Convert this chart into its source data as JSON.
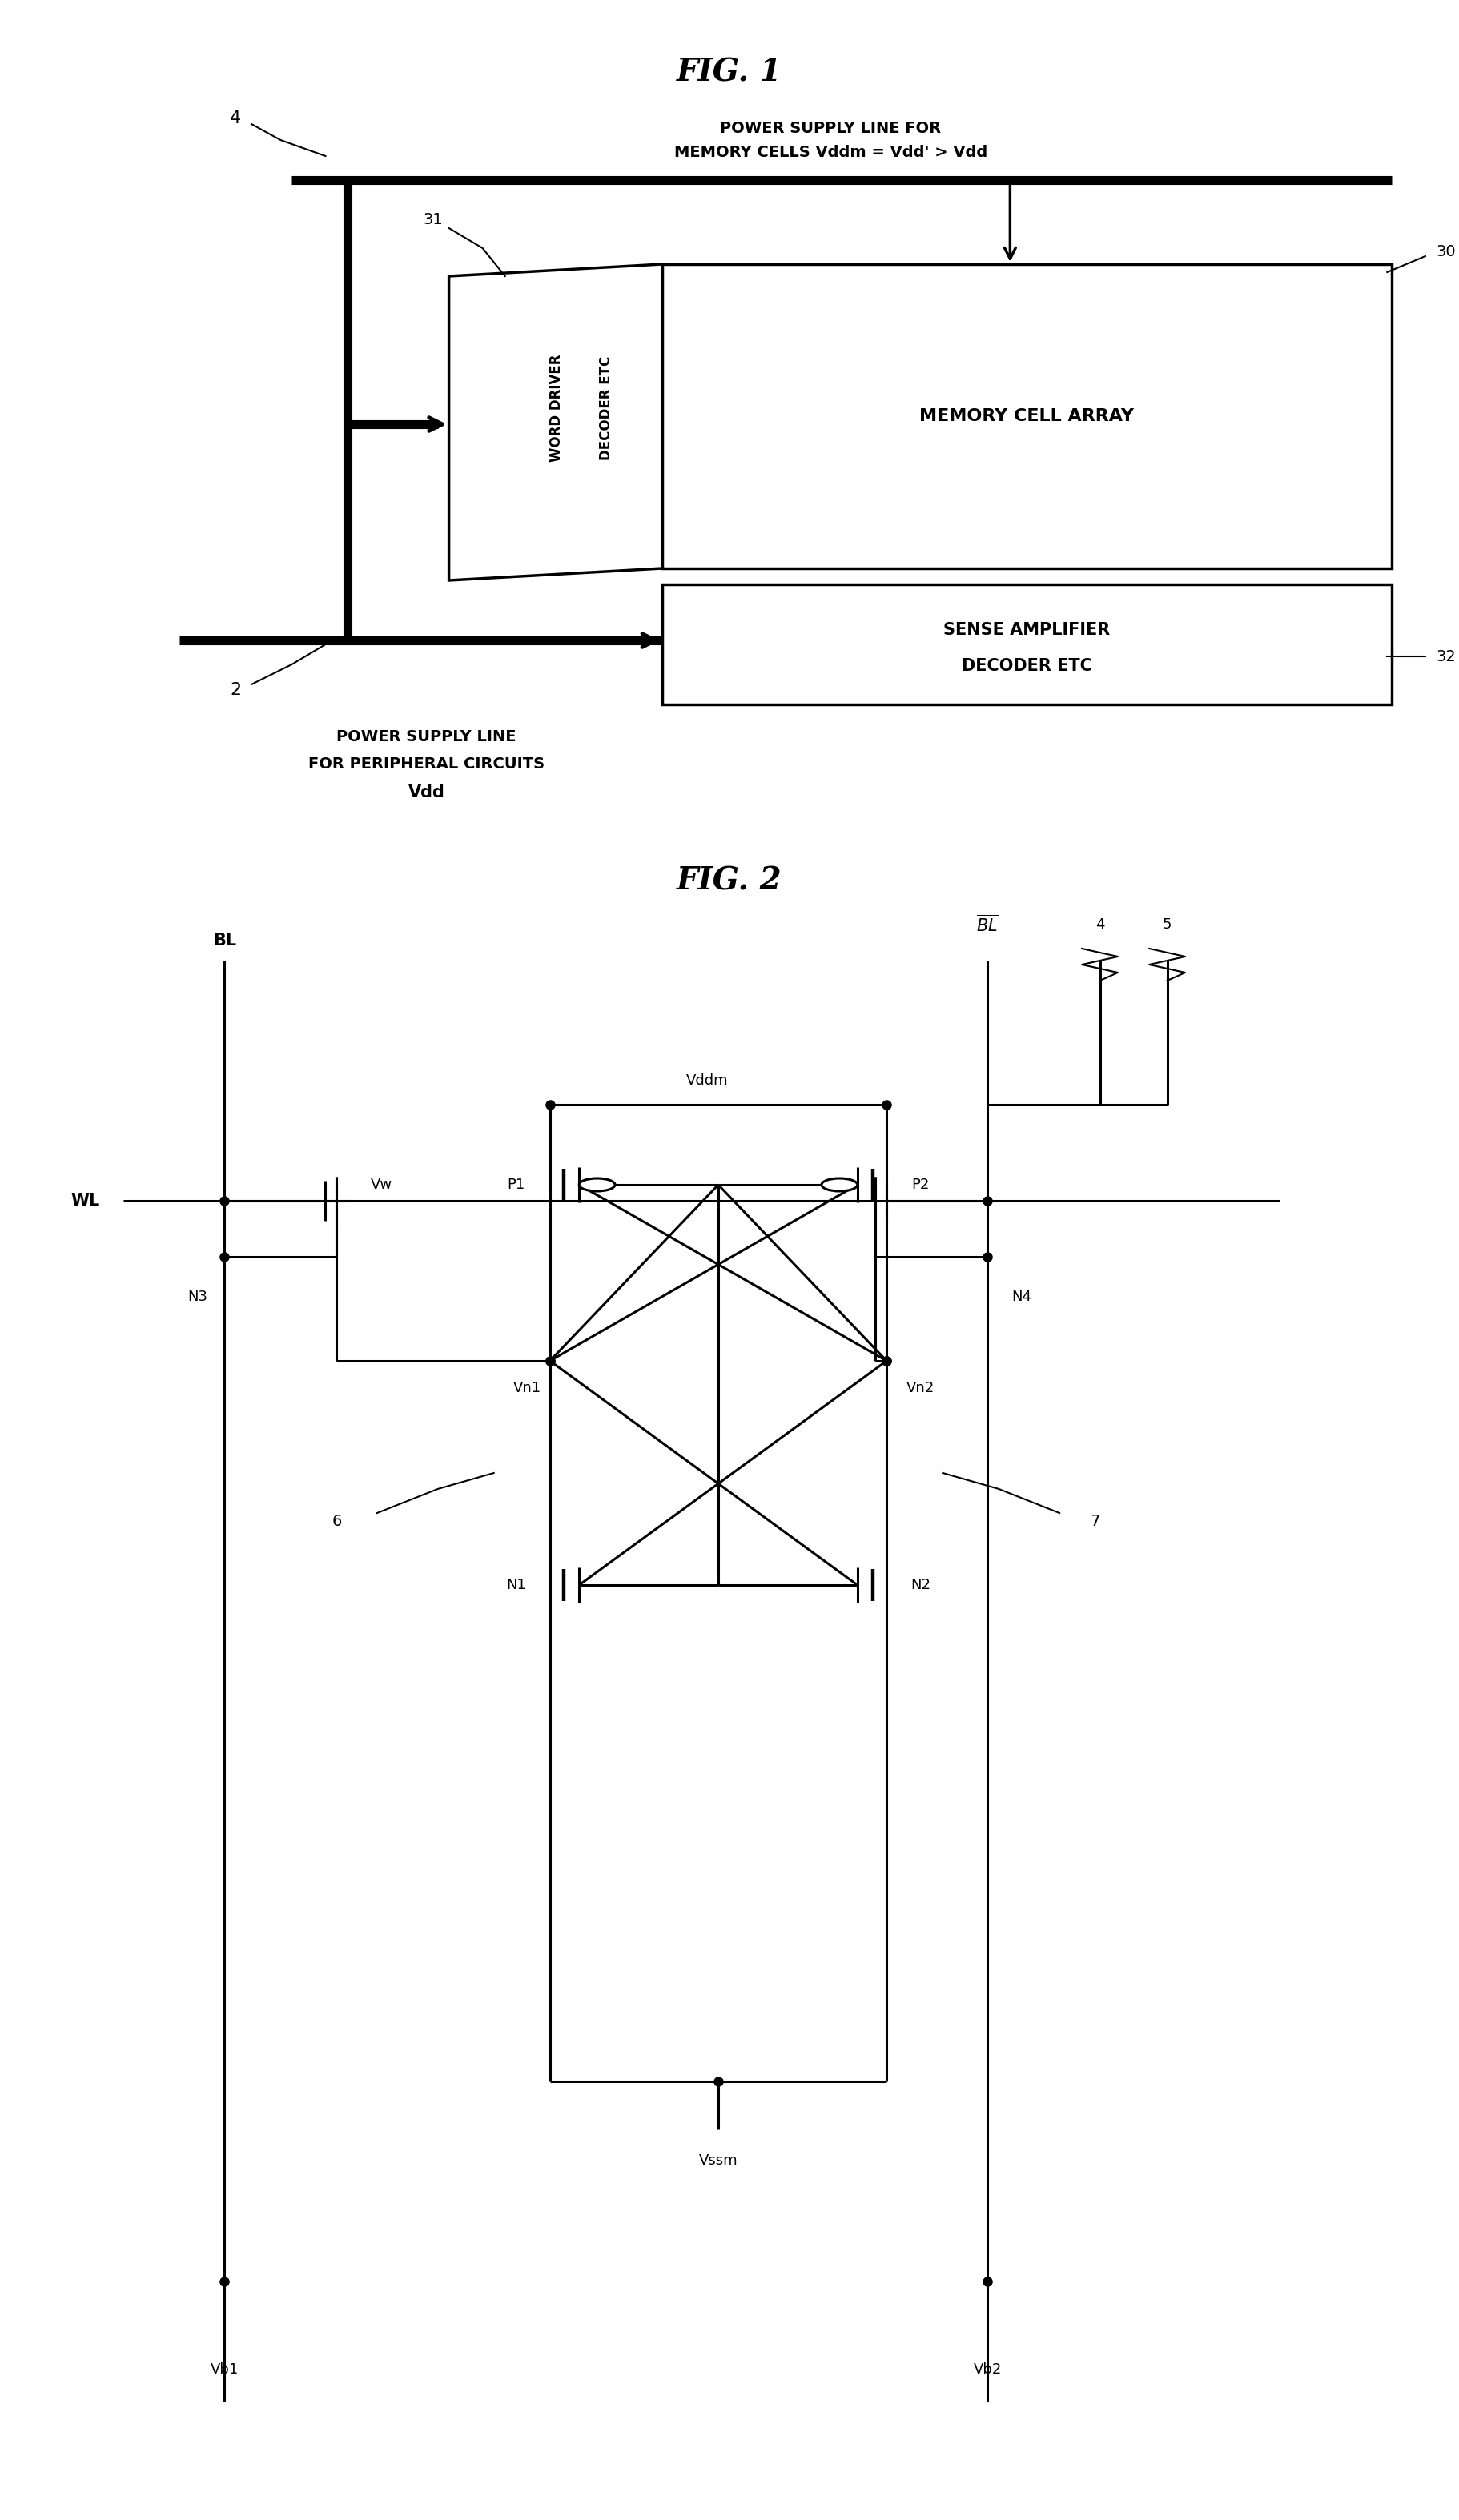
{
  "fig_width": 18.22,
  "fig_height": 31.48,
  "bg_color": "#ffffff",
  "lw_thin": 1.5,
  "lw_med": 2.2,
  "lw_thick": 8.0,
  "fig1_title": "FIG. 1",
  "fig2_title": "FIG. 2",
  "mca_text": "MEMORY CELL ARRAY",
  "sa_text1": "SENSE AMPLIFIER",
  "sa_text2": "DECODER ETC",
  "wd_text1": "WORD DRIVER",
  "wd_text2": "DECODER ETC",
  "bus1_text1": "POWER SUPPLY LINE FOR",
  "bus1_text2": "MEMORY CELLS Vddm = Vdd' > Vdd",
  "bus2_text1": "POWER SUPPLY LINE",
  "bus2_text2": "FOR PERIPHERAL CIRCUITS",
  "bus2_text3": "Vdd"
}
